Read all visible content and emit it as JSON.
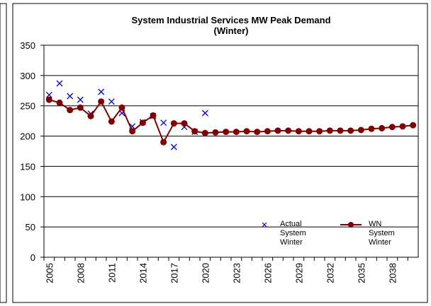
{
  "chart_data": {
    "type": "line",
    "title": [
      "System  Industrial Services MW Peak Demand",
      "(Winter)"
    ],
    "categories": [
      "2005",
      null,
      null,
      "2008",
      null,
      null,
      "2011",
      null,
      null,
      "2014",
      null,
      null,
      "2017",
      null,
      null,
      "2020",
      null,
      null,
      "2023",
      null,
      null,
      "2026",
      null,
      null,
      "2029",
      null,
      null,
      "2032",
      null,
      null,
      "2035",
      null,
      null,
      "2038",
      null,
      null
    ],
    "series": [
      {
        "name": "Actual System Winter",
        "color": "#0000cc",
        "marker": "x",
        "values": [
          268,
          287,
          266,
          260,
          237,
          273,
          257,
          238,
          216,
          223,
          233,
          222,
          182,
          215,
          207,
          238,
          null,
          null,
          null,
          null,
          null,
          null,
          null,
          null,
          null,
          null,
          null,
          null,
          null,
          null,
          null,
          null,
          null,
          null,
          null,
          null
        ]
      },
      {
        "name": "WN System Winter",
        "color": "#800000",
        "marker": "circle",
        "values": [
          260,
          255,
          243,
          247,
          233,
          257,
          224,
          247,
          208,
          222,
          234,
          190,
          221,
          221,
          208,
          205,
          206,
          207,
          207,
          208,
          207,
          208,
          209,
          209,
          208,
          208,
          208,
          209,
          209,
          209,
          210,
          212,
          213,
          215,
          216,
          218
        ]
      }
    ],
    "ylim": [
      0,
      350
    ],
    "yticks": [
      0,
      50,
      100,
      150,
      200,
      250,
      300,
      350
    ],
    "grid": true
  }
}
